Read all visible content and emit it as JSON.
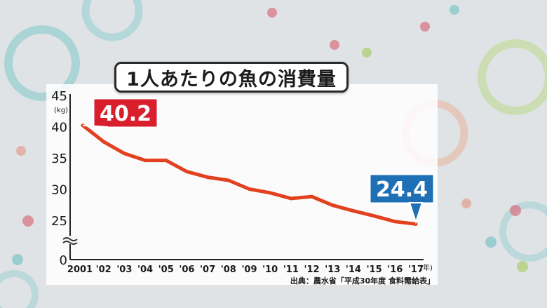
{
  "title": "1人あたりの魚の消費量",
  "source": "出典：農水省「平成30年度 食料需給表」",
  "colors": {
    "line": "#e2411f",
    "start_label_bg": "#d91e2c",
    "end_label_bg": "#1e6fb5"
  },
  "chart_data": {
    "type": "line",
    "x": [
      "2001",
      "'02",
      "'03",
      "'04",
      "'05",
      "'06",
      "'07",
      "'08",
      "'09",
      "'10",
      "'11",
      "'12",
      "'13",
      "'14",
      "'15",
      "'16",
      "'17"
    ],
    "x_unit": "(年)",
    "y_unit": "(kg)",
    "y_ticks": [
      "0",
      "25",
      "30",
      "35",
      "40",
      "45"
    ],
    "y_axis_break": true,
    "series": [
      {
        "values": [
          40.2,
          37.6,
          35.7,
          34.6,
          34.6,
          32.8,
          31.9,
          31.4,
          30.0,
          29.4,
          28.5,
          28.8,
          27.4,
          26.5,
          25.7,
          24.8,
          24.4
        ]
      }
    ],
    "annotations": [
      {
        "text": "40.2",
        "at": "2001"
      },
      {
        "text": "24.4",
        "at": "'17"
      }
    ],
    "grid": false
  }
}
